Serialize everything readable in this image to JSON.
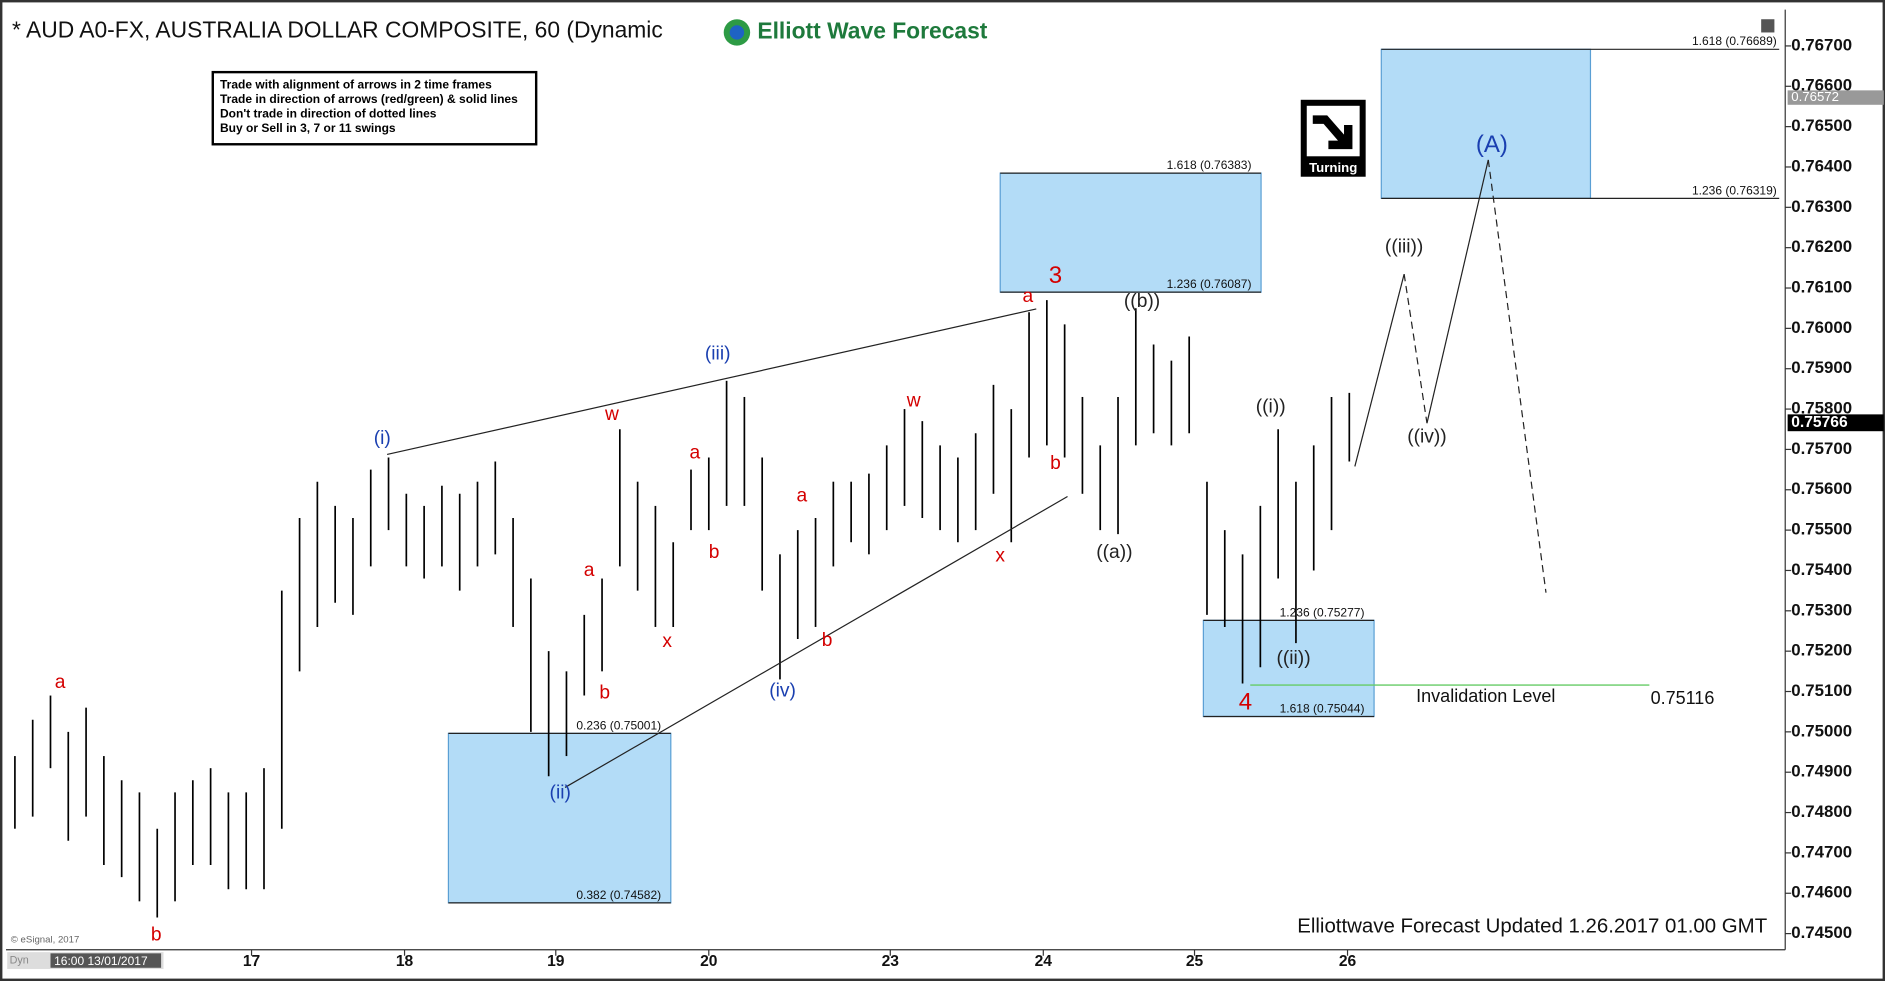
{
  "chart_data": {
    "type": "ohlc",
    "title": "* AUD A0-FX, AUSTRALIA DOLLAR COMPOSITE, 60 (Dynamic",
    "brand": "Elliott Wave Forecast",
    "rules": [
      "Trade with alignment of arrows in 2 time frames",
      "Trade in direction of arrows (red/green) & solid lines",
      "Don't trade in direction of dotted lines",
      "Buy or Sell in 3, 7 or 11 swings"
    ],
    "badge": "Turning",
    "footer": "Elliottwave Forecast Updated 1.26.2017 01.00 GMT",
    "copyright": "© eSignal, 2017",
    "corner_label": "Dyn",
    "start_time": "16:00 13/01/2017",
    "color": "#000000",
    "high": [
      0.7494,
      0.7503,
      0.7509,
      0.75,
      0.7506,
      0.7494,
      0.7488,
      0.7485,
      0.7476,
      0.7485,
      0.7488,
      0.7491,
      0.7485,
      0.7485,
      0.7491,
      0.7535,
      0.7553,
      0.7562,
      0.7556,
      0.7553,
      0.7565,
      0.7568,
      0.7559,
      0.7556,
      0.7561,
      0.7559,
      0.7562,
      0.7567,
      0.7553,
      0.7538,
      0.752,
      0.7515,
      0.7529,
      0.7538,
      0.7575,
      0.7562,
      0.7556,
      0.7547,
      0.7565,
      0.7568,
      0.7587,
      0.7583,
      0.7568,
      0.7544,
      0.755,
      0.7553,
      0.7562,
      0.7562,
      0.7564,
      0.7571,
      0.758,
      0.7577,
      0.7571,
      0.7568,
      0.7574,
      0.7586,
      0.758,
      0.7604,
      0.7607,
      0.7601,
      0.7583,
      0.7571,
      0.7583,
      0.7605,
      0.7596,
      0.7592,
      0.7598,
      0.7562,
      0.755,
      0.7544,
      0.7556,
      0.7575,
      0.7562,
      0.7571,
      0.7583,
      0.7584
    ],
    "low": [
      0.7476,
      0.7479,
      0.7491,
      0.7473,
      0.7479,
      0.7467,
      0.7464,
      0.7458,
      0.7454,
      0.7458,
      0.7467,
      0.7467,
      0.7461,
      0.7461,
      0.7461,
      0.7476,
      0.7515,
      0.7526,
      0.7532,
      0.7529,
      0.7541,
      0.755,
      0.7541,
      0.7538,
      0.7541,
      0.7535,
      0.7541,
      0.7544,
      0.7526,
      0.75,
      0.7489,
      0.7494,
      0.7509,
      0.7515,
      0.7541,
      0.7535,
      0.7526,
      0.7526,
      0.755,
      0.755,
      0.7556,
      0.7556,
      0.7535,
      0.7513,
      0.7523,
      0.7526,
      0.7541,
      0.7547,
      0.7544,
      0.755,
      0.7556,
      0.7553,
      0.755,
      0.7547,
      0.755,
      0.7559,
      0.7547,
      0.7568,
      0.7571,
      0.7568,
      0.7559,
      0.755,
      0.7549,
      0.7571,
      0.7574,
      0.7571,
      0.7574,
      0.7529,
      0.7526,
      0.7512,
      0.7516,
      0.7538,
      0.7522,
      0.754,
      0.755,
      0.7567
    ],
    "xlim": [
      -0.5,
      99.5
    ],
    "xticks": [
      {
        "value": 13.3,
        "label": "17"
      },
      {
        "value": 21.9,
        "label": "18"
      },
      {
        "value": 30.4,
        "label": "19"
      },
      {
        "value": 39.0,
        "label": "20"
      },
      {
        "value": 49.2,
        "label": "23"
      },
      {
        "value": 57.8,
        "label": "24"
      },
      {
        "value": 66.3,
        "label": "25"
      },
      {
        "value": 74.9,
        "label": "26"
      }
    ],
    "ylim": [
      0.7446,
      0.7679
    ],
    "yticks": [
      {
        "value": 0.745,
        "label": "0.74500"
      },
      {
        "value": 0.746,
        "label": "0.74600"
      },
      {
        "value": 0.747,
        "label": "0.74700"
      },
      {
        "value": 0.748,
        "label": "0.74800"
      },
      {
        "value": 0.749,
        "label": "0.74900"
      },
      {
        "value": 0.75,
        "label": "0.75000"
      },
      {
        "value": 0.751,
        "label": "0.75100"
      },
      {
        "value": 0.752,
        "label": "0.75200"
      },
      {
        "value": 0.753,
        "label": "0.75300"
      },
      {
        "value": 0.754,
        "label": "0.75400"
      },
      {
        "value": 0.755,
        "label": "0.75500"
      },
      {
        "value": 0.756,
        "label": "0.75600"
      },
      {
        "value": 0.757,
        "label": "0.75700"
      },
      {
        "value": 0.758,
        "label": "0.75800"
      },
      {
        "value": 0.759,
        "label": "0.75900"
      },
      {
        "value": 0.76,
        "label": "0.76000"
      },
      {
        "value": 0.761,
        "label": "0.76100"
      },
      {
        "value": 0.762,
        "label": "0.76200"
      },
      {
        "value": 0.763,
        "label": "0.76300"
      },
      {
        "value": 0.764,
        "label": "0.76400"
      },
      {
        "value": 0.765,
        "label": "0.76500"
      },
      {
        "value": 0.766,
        "label": "0.76600"
      },
      {
        "value": 0.767,
        "label": "0.76700"
      }
    ],
    "last_price": 0.75766,
    "marker_price": 0.76572,
    "invalidation": {
      "label": "Invalidation Level",
      "value": 0.75116,
      "color": "#66cc66"
    },
    "zones": [
      {
        "top": "0.236 (0.75001)",
        "bottom": "0.382 (0.74582)"
      },
      {
        "top": "1.618 (0.76383)",
        "bottom": "1.236 (0.76087)"
      },
      {
        "top": "1.236 (0.75277)",
        "bottom": "1.618 (0.75044)"
      },
      {
        "top": "1.618 (0.76689)",
        "bottom": "1.236 (0.76319)"
      }
    ],
    "zone_color": "#b3dcf7",
    "annotations": [
      {
        "text": "a",
        "color": "#d40000"
      },
      {
        "text": "b",
        "color": "#d40000"
      },
      {
        "text": "(i)",
        "color": "#1a3fb0"
      },
      {
        "text": "(ii)",
        "color": "#1a3fb0"
      },
      {
        "text": "(iii)",
        "color": "#1a3fb0"
      },
      {
        "text": "(iv)",
        "color": "#1a3fb0"
      },
      {
        "text": "a",
        "color": "#d40000"
      },
      {
        "text": "b",
        "color": "#d40000"
      },
      {
        "text": "w",
        "color": "#d40000"
      },
      {
        "text": "x",
        "color": "#d40000"
      },
      {
        "text": "a",
        "color": "#d40000"
      },
      {
        "text": "b",
        "color": "#d40000"
      },
      {
        "text": "a",
        "color": "#d40000"
      },
      {
        "text": "b",
        "color": "#d40000"
      },
      {
        "text": "w",
        "color": "#d40000"
      },
      {
        "text": "x",
        "color": "#d40000"
      },
      {
        "text": "a",
        "color": "#d40000"
      },
      {
        "text": "3",
        "color": "#d40000"
      },
      {
        "text": "b",
        "color": "#d40000"
      },
      {
        "text": "((a))",
        "color": "#222222"
      },
      {
        "text": "((b))",
        "color": "#222222"
      },
      {
        "text": "((i))",
        "color": "#222222"
      },
      {
        "text": "((ii))",
        "color": "#222222"
      },
      {
        "text": "4",
        "color": "#d40000"
      },
      {
        "text": "((iii))",
        "color": "#222222"
      },
      {
        "text": "((iv))",
        "color": "#222222"
      },
      {
        "text": "(A)",
        "color": "#1a3fb0"
      }
    ]
  }
}
